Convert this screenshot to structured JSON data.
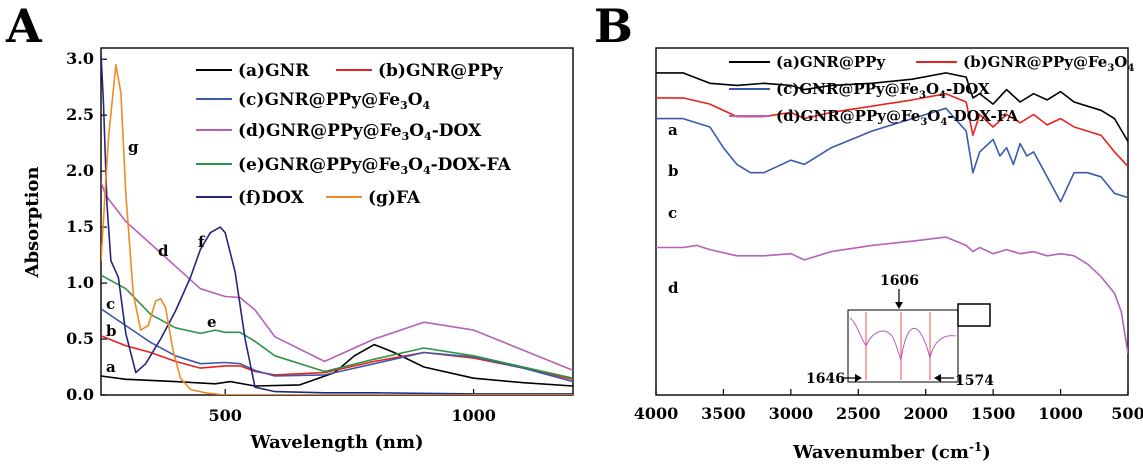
{
  "chart_data": [
    {
      "panel": "A",
      "type": "line",
      "xlabel": "Wavelength (nm)",
      "ylabel": "Absorption",
      "xlim": [
        250,
        1200
      ],
      "ylim": [
        0.0,
        3.1
      ],
      "xticks": [
        500,
        1000
      ],
      "yticks": [
        0.0,
        0.5,
        1.0,
        1.5,
        2.0,
        2.5,
        3.0
      ],
      "tick_labels_x": [
        "500",
        "1000"
      ],
      "tick_labels_y": [
        "0.0",
        "0.5",
        "1.0",
        "1.5",
        "2.0",
        "2.5",
        "3.0"
      ],
      "legend_placement": "top-right",
      "series": [
        {
          "id": "a",
          "name": "(a)GNR",
          "color": "#000000",
          "letter": "a",
          "x": [
            250,
            300,
            400,
            480,
            510,
            560,
            650,
            720,
            760,
            800,
            840,
            900,
            1000,
            1100,
            1200
          ],
          "y": [
            0.17,
            0.14,
            0.12,
            0.1,
            0.12,
            0.08,
            0.09,
            0.2,
            0.35,
            0.45,
            0.38,
            0.25,
            0.15,
            0.11,
            0.08
          ]
        },
        {
          "id": "b",
          "name": "(b)GNR@PPy",
          "color": "#e8231f",
          "letter": "b",
          "x": [
            250,
            300,
            350,
            400,
            450,
            500,
            530,
            560,
            600,
            700,
            800,
            900,
            1000,
            1100,
            1200
          ],
          "y": [
            0.53,
            0.44,
            0.38,
            0.3,
            0.24,
            0.26,
            0.26,
            0.21,
            0.18,
            0.2,
            0.3,
            0.38,
            0.33,
            0.24,
            0.14
          ]
        },
        {
          "id": "c",
          "name": "(c)GNR@PPy@Fe3O4",
          "color": "#3b5aab",
          "letter": "c",
          "x": [
            250,
            300,
            350,
            400,
            450,
            500,
            530,
            560,
            600,
            700,
            800,
            900,
            1000,
            1100,
            1200
          ],
          "y": [
            0.77,
            0.62,
            0.47,
            0.35,
            0.28,
            0.29,
            0.28,
            0.22,
            0.17,
            0.18,
            0.28,
            0.38,
            0.34,
            0.24,
            0.12
          ]
        },
        {
          "id": "d",
          "name": "(d)GNR@PPy@Fe3O4-DOX",
          "color": "#b760b8",
          "letter": "d",
          "x": [
            250,
            260,
            300,
            350,
            400,
            450,
            500,
            530,
            560,
            600,
            700,
            800,
            900,
            1000,
            1100,
            1200
          ],
          "y": [
            1.9,
            1.78,
            1.55,
            1.35,
            1.15,
            0.95,
            0.88,
            0.87,
            0.76,
            0.52,
            0.3,
            0.5,
            0.65,
            0.58,
            0.4,
            0.22
          ]
        },
        {
          "id": "e",
          "name": "(e)GNR@PPy@Fe3O4-DOX-FA",
          "color": "#2f9446",
          "letter": "e",
          "x": [
            250,
            300,
            350,
            400,
            450,
            480,
            500,
            530,
            560,
            600,
            700,
            800,
            900,
            1000,
            1100,
            1200
          ],
          "y": [
            1.07,
            0.95,
            0.72,
            0.6,
            0.55,
            0.58,
            0.56,
            0.56,
            0.48,
            0.35,
            0.21,
            0.32,
            0.42,
            0.35,
            0.25,
            0.15
          ]
        },
        {
          "id": "f",
          "name": "(f)DOX",
          "color": "#24277c",
          "letter": "f",
          "x": [
            250,
            255,
            262,
            270,
            285,
            300,
            320,
            340,
            370,
            400,
            430,
            450,
            470,
            490,
            500,
            520,
            540,
            560,
            600,
            700,
            800,
            1000,
            1200
          ],
          "y": [
            3.05,
            2.6,
            1.7,
            1.2,
            1.05,
            0.55,
            0.2,
            0.28,
            0.5,
            0.75,
            1.05,
            1.3,
            1.45,
            1.5,
            1.45,
            1.1,
            0.5,
            0.07,
            0.03,
            0.02,
            0.02,
            0.01,
            0.01
          ]
        },
        {
          "id": "g",
          "name": "(g)FA",
          "color": "#f08a24",
          "letter": "g",
          "x": [
            250,
            265,
            280,
            290,
            300,
            315,
            330,
            345,
            360,
            370,
            380,
            395,
            410,
            430,
            460,
            500,
            700,
            1200
          ],
          "y": [
            1.2,
            2.3,
            2.95,
            2.7,
            1.8,
            0.9,
            0.58,
            0.62,
            0.84,
            0.86,
            0.78,
            0.4,
            0.15,
            0.05,
            0.02,
            0.0,
            0.0,
            0.0
          ]
        }
      ]
    },
    {
      "panel": "B",
      "type": "line",
      "xlabel": "Wavenumber (cm-1)",
      "ylabel": "",
      "xlim": [
        4000,
        500
      ],
      "xticks": [
        4000,
        3500,
        3000,
        2500,
        2000,
        1500,
        1000,
        500
      ],
      "tick_labels_x": [
        "4000",
        "3500",
        "3000",
        "2500",
        "2000",
        "1500",
        "1000",
        "500"
      ],
      "legend_placement": "top-right",
      "annotations": [
        "1606",
        "1646",
        "1574"
      ],
      "series": [
        {
          "id": "a",
          "name": "(a)GNR@PPy",
          "color": "#000000",
          "letter": "a",
          "x": [
            4000,
            3800,
            3600,
            3400,
            3200,
            3000,
            2900,
            2700,
            2400,
            2100,
            1850,
            1700,
            1650,
            1600,
            1500,
            1400,
            1300,
            1200,
            1100,
            1000,
            900,
            800,
            700,
            600,
            500
          ],
          "y": [
            0.5,
            0.5,
            0.45,
            0.44,
            0.45,
            0.44,
            0.42,
            0.44,
            0.45,
            0.47,
            0.5,
            0.48,
            0.38,
            0.4,
            0.35,
            0.42,
            0.36,
            0.4,
            0.37,
            0.41,
            0.36,
            0.34,
            0.32,
            0.28,
            0.17
          ]
        },
        {
          "id": "b",
          "name": "(b)GNR@PPy@Fe3O4",
          "color": "#e8231f",
          "letter": "b",
          "x": [
            4000,
            3800,
            3600,
            3400,
            3200,
            3000,
            2900,
            2700,
            2400,
            2100,
            1850,
            1700,
            1650,
            1600,
            1500,
            1400,
            1300,
            1200,
            1100,
            1000,
            900,
            800,
            700,
            600,
            500
          ],
          "y": [
            0.38,
            0.38,
            0.35,
            0.29,
            0.29,
            0.31,
            0.28,
            0.31,
            0.34,
            0.37,
            0.4,
            0.36,
            0.2,
            0.3,
            0.24,
            0.3,
            0.26,
            0.3,
            0.25,
            0.28,
            0.24,
            0.22,
            0.2,
            0.12,
            0.05
          ]
        },
        {
          "id": "c",
          "name": "(c)GNR@PPy@Fe3O4-DOX",
          "color": "#3b5aab",
          "letter": "c",
          "x": [
            4000,
            3800,
            3600,
            3500,
            3400,
            3300,
            3200,
            3000,
            2900,
            2700,
            2400,
            2100,
            1850,
            1700,
            1650,
            1600,
            1500,
            1450,
            1400,
            1350,
            1300,
            1250,
            1200,
            1100,
            1000,
            900,
            800,
            700,
            600,
            500
          ],
          "y": [
            0.28,
            0.28,
            0.24,
            0.14,
            0.06,
            0.02,
            0.02,
            0.08,
            0.06,
            0.14,
            0.22,
            0.28,
            0.33,
            0.22,
            0.02,
            0.12,
            0.18,
            0.1,
            0.14,
            0.06,
            0.16,
            0.1,
            0.12,
            0.0,
            -0.12,
            0.02,
            0.02,
            0.0,
            -0.08,
            -0.1
          ]
        },
        {
          "id": "d",
          "name": "(d)GNR@PPy@Fe3O4-DOX-FA",
          "color": "#b760b8",
          "letter": "d",
          "x": [
            4000,
            3800,
            3700,
            3600,
            3400,
            3200,
            3000,
            2900,
            2700,
            2400,
            2100,
            1850,
            1700,
            1650,
            1600,
            1500,
            1400,
            1300,
            1200,
            1100,
            1000,
            900,
            800,
            700,
            600,
            550,
            500
          ],
          "y": [
            -0.34,
            -0.34,
            -0.33,
            -0.35,
            -0.38,
            -0.38,
            -0.37,
            -0.4,
            -0.36,
            -0.33,
            -0.31,
            -0.29,
            -0.33,
            -0.36,
            -0.34,
            -0.37,
            -0.35,
            -0.37,
            -0.36,
            -0.38,
            -0.37,
            -0.38,
            -0.42,
            -0.48,
            -0.56,
            -0.65,
            -0.85
          ]
        }
      ]
    }
  ]
}
